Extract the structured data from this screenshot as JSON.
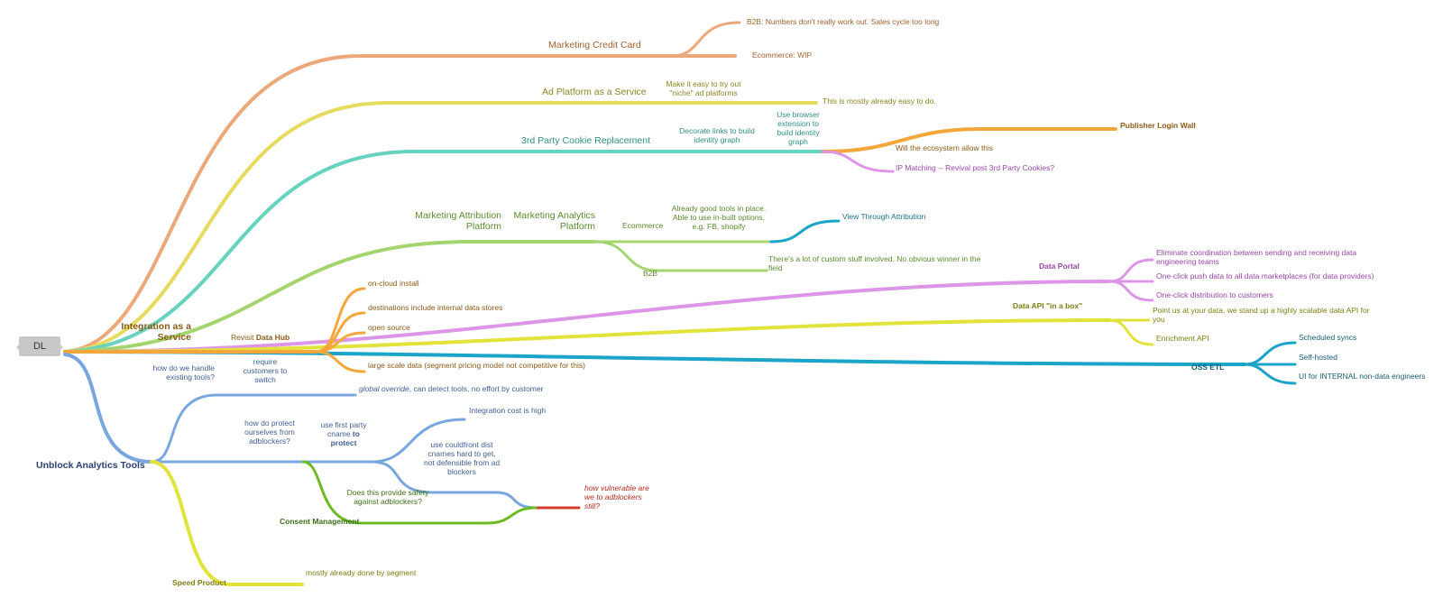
{
  "root": "DL",
  "colors": {
    "orange_salmon": "#eca878",
    "yellow": "#e6db5e",
    "teal": "#66d2c0",
    "green": "#a3d56e",
    "orange": "#f3a73b",
    "violet": "#dd95e8",
    "lime": "#e2e33a",
    "cyan": "#1aa4c8",
    "blue": "#78a7e0",
    "dark_green": "#6cbb24",
    "red": "#d43b2b"
  },
  "nodes": {
    "marketing_credit_card": "Marketing Credit Card",
    "b2b_numbers": "B2B: Numbers don't really work out. Sales cycle too long",
    "ecommerce_wip": "Ecommerce: WIP",
    "ad_platform": "Ad Platform as a Service",
    "niche_ad": "Make it easy to try out \"niche\" ad platforms",
    "mostly_easy": "This is mostly already easy to do.",
    "cookie_replacement": "3rd Party Cookie Replacement",
    "decorate_links": "Decorate links to build identity graph",
    "browser_extension": "Use browser extension to build identity graph",
    "publisher_login": "Publisher Login Wall",
    "ecosystem_allow": "Will the ecosystem allow this",
    "ip_matching": "IP Matching -- Revival post 3rd Party Cookies?",
    "attribution_platform": "Marketing Attribution Platform",
    "analytics_platform": "Marketing Analytics Platform",
    "ecommerce": "Ecommerce",
    "already_tools": "Already good tools in place. Able to use in-built options, e.g. FB, shopify",
    "view_through": "View Through Attribution",
    "b2b": "B2B",
    "custom_stuff": "There's a lot of custom stuff involved. No obvious winner in the field",
    "data_portal": "Data Portal",
    "eliminate_coord": "Eliminate coordination between sending and receiving data engineering teams",
    "one_click_push": "One-click push data to all data marketplaces (for data providers)",
    "one_click_dist": "One-click distribution to customers",
    "data_api": "Data API \"in a box\"",
    "point_us": "Point us at your data, we stand up a highly scalable data API for you",
    "enrichment_api": "Enrichment API",
    "oss_etl": "OSS ETL",
    "scheduled_syncs": "Scheduled syncs",
    "self_hosted": "Self-hosted",
    "ui_internal": "UI for INTERNAL non-data engineers",
    "integration_service": "Integration as a Service",
    "revisit": "Revisit",
    "data_hub": "Data Hub",
    "on_cloud": "on-cloud install",
    "destinations": "destinations include internal data stores",
    "open_source": "open source",
    "large_scale": "large scale data (segment pricing model not competitive for this)",
    "unblock_tools": "Unblock Analytics Tools",
    "handle_existing": "how do we handle existing tools?",
    "require_switch": "require customers to switch",
    "global_override": "global override",
    "global_override_rest": ", can detect tools, no effort by customer",
    "protect_adblockers": "how do protect ourselves from adblockers?",
    "use_first_party": "use first party cname",
    "to_protect": "to protect",
    "integration_cost": "Integration cost is high",
    "cloudfront": "use couldfront dist cnames hard to get, not defensible from ad blockers",
    "vulnerable": "how vulnerable are we to adblockers still?",
    "does_this_provide": "Does this provide safety against adblockers?",
    "consent_mgmt": "Consent Management",
    "speed_product": "Speed Product",
    "mostly_segment": "mostly already done by segment"
  }
}
